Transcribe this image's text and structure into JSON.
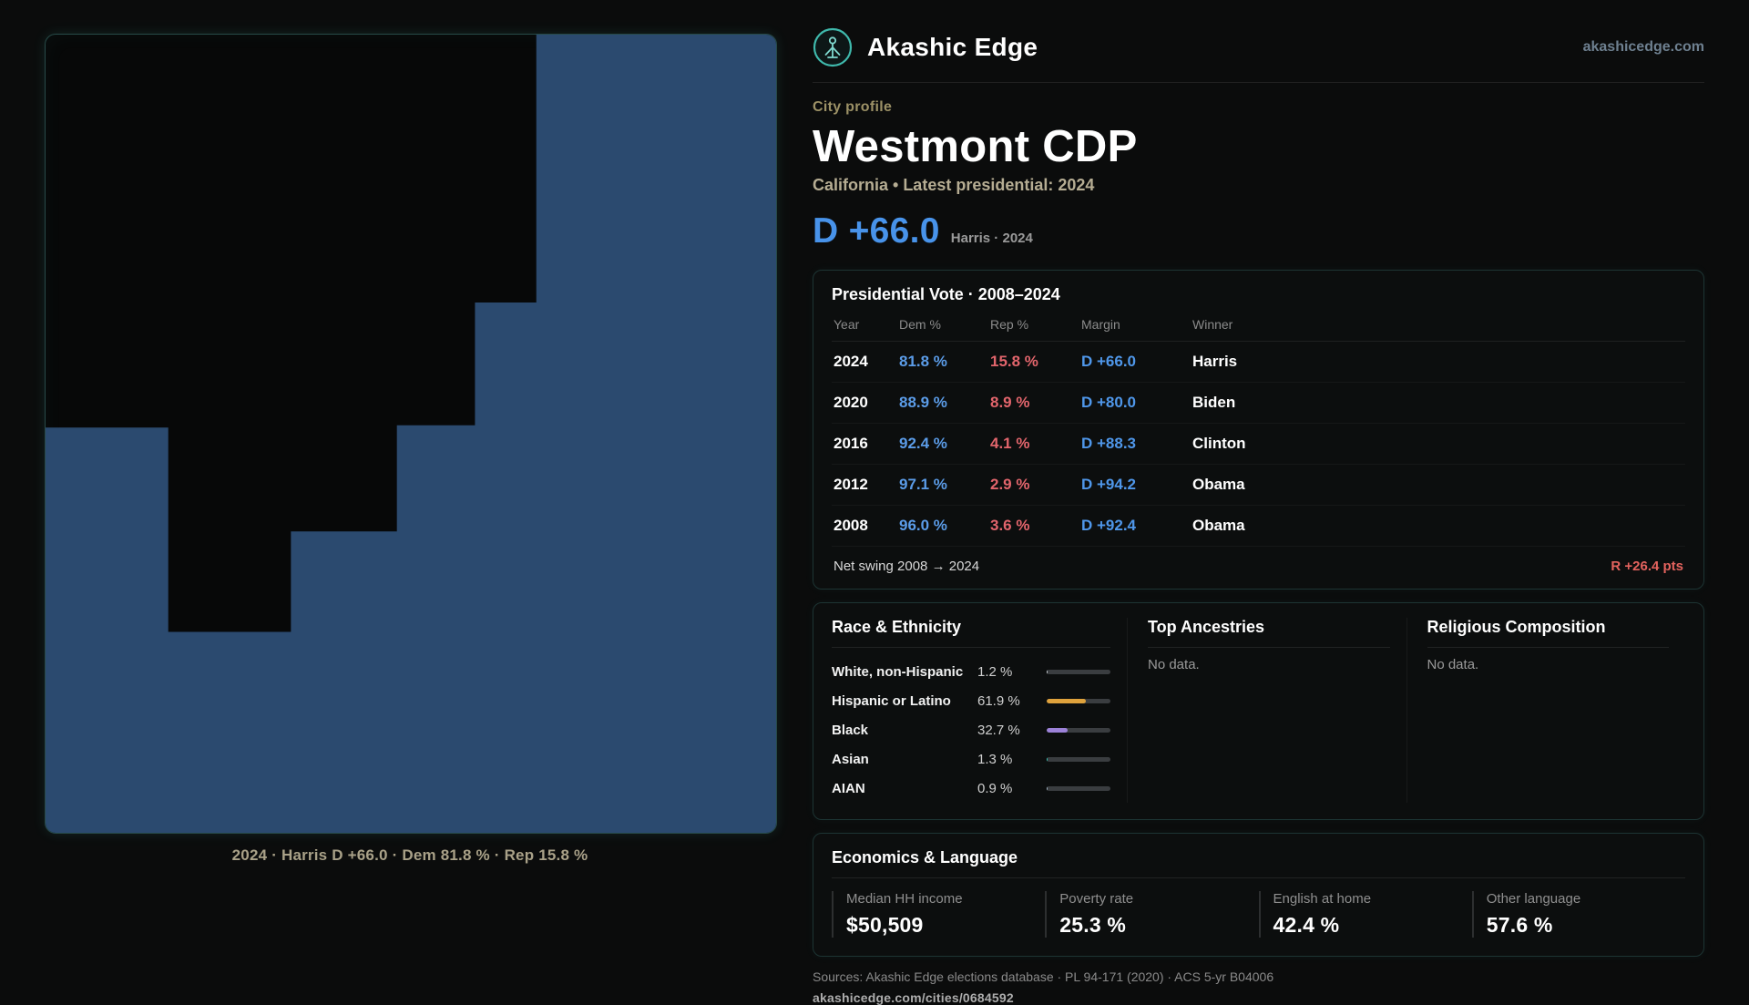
{
  "brand": {
    "name": "Akashic Edge",
    "domain": "akashicedge.com"
  },
  "map": {
    "caption": "2024 · Harris D +66.0 · Dem 81.8 % · Rep 15.8 %",
    "fill": "#2b4a6f"
  },
  "profile": {
    "kicker": "City profile",
    "title": "Westmont CDP",
    "subtitle": "California • Latest presidential: 2024",
    "margin_big": "D +66.0",
    "margin_note": "Harris · 2024"
  },
  "colors": {
    "dem_blue": "#4f97ea",
    "rep_red": "#e2656c",
    "accent_teal": "#3fb9ac",
    "kicker_olive": "#9c9166"
  },
  "vote_table": {
    "title": "Presidential Vote · 2008–2024",
    "columns": [
      "Year",
      "Dem %",
      "Rep %",
      "Margin",
      "Winner"
    ],
    "rows": [
      {
        "year": "2024",
        "dem": "81.8 %",
        "rep": "15.8 %",
        "margin": "D +66.0",
        "winner": "Harris"
      },
      {
        "year": "2020",
        "dem": "88.9 %",
        "rep": "8.9 %",
        "margin": "D +80.0",
        "winner": "Biden"
      },
      {
        "year": "2016",
        "dem": "92.4 %",
        "rep": "4.1 %",
        "margin": "D +88.3",
        "winner": "Clinton"
      },
      {
        "year": "2012",
        "dem": "97.1 %",
        "rep": "2.9 %",
        "margin": "D +94.2",
        "winner": "Obama"
      },
      {
        "year": "2008",
        "dem": "96.0 %",
        "rep": "3.6 %",
        "margin": "D +92.4",
        "winner": "Obama"
      }
    ],
    "net_swing_label": "Net swing 2008 → 2024",
    "net_swing_value": "R +26.4 pts"
  },
  "race": {
    "title": "Race & Ethnicity",
    "rows": [
      {
        "label": "White, non-Hispanic",
        "value": "1.2 %",
        "pct": 1.2,
        "color": "#ccd2d8"
      },
      {
        "label": "Hispanic or Latino",
        "value": "61.9 %",
        "pct": 61.9,
        "color": "#dfa23c"
      },
      {
        "label": "Black",
        "value": "32.7 %",
        "pct": 32.7,
        "color": "#9c82d8"
      },
      {
        "label": "Asian",
        "value": "1.3 %",
        "pct": 1.3,
        "color": "#35c3b4"
      },
      {
        "label": "AIAN",
        "value": "0.9 %",
        "pct": 0.9,
        "color": "#9fb0c0"
      }
    ]
  },
  "ancestries": {
    "title": "Top Ancestries",
    "empty": "No data."
  },
  "religion": {
    "title": "Religious Composition",
    "empty": "No data."
  },
  "economics": {
    "title": "Economics & Language",
    "stats": [
      {
        "label": "Median HH income",
        "value": "$50,509"
      },
      {
        "label": "Poverty rate",
        "value": "25.3 %"
      },
      {
        "label": "English at home",
        "value": "42.4 %"
      },
      {
        "label": "Other language",
        "value": "57.6 %"
      }
    ]
  },
  "footer": {
    "sources": "Sources: Akashic Edge elections database · PL 94-171 (2020) · ACS 5-yr B04006",
    "link": "akashicedge.com/cities/0684592"
  }
}
